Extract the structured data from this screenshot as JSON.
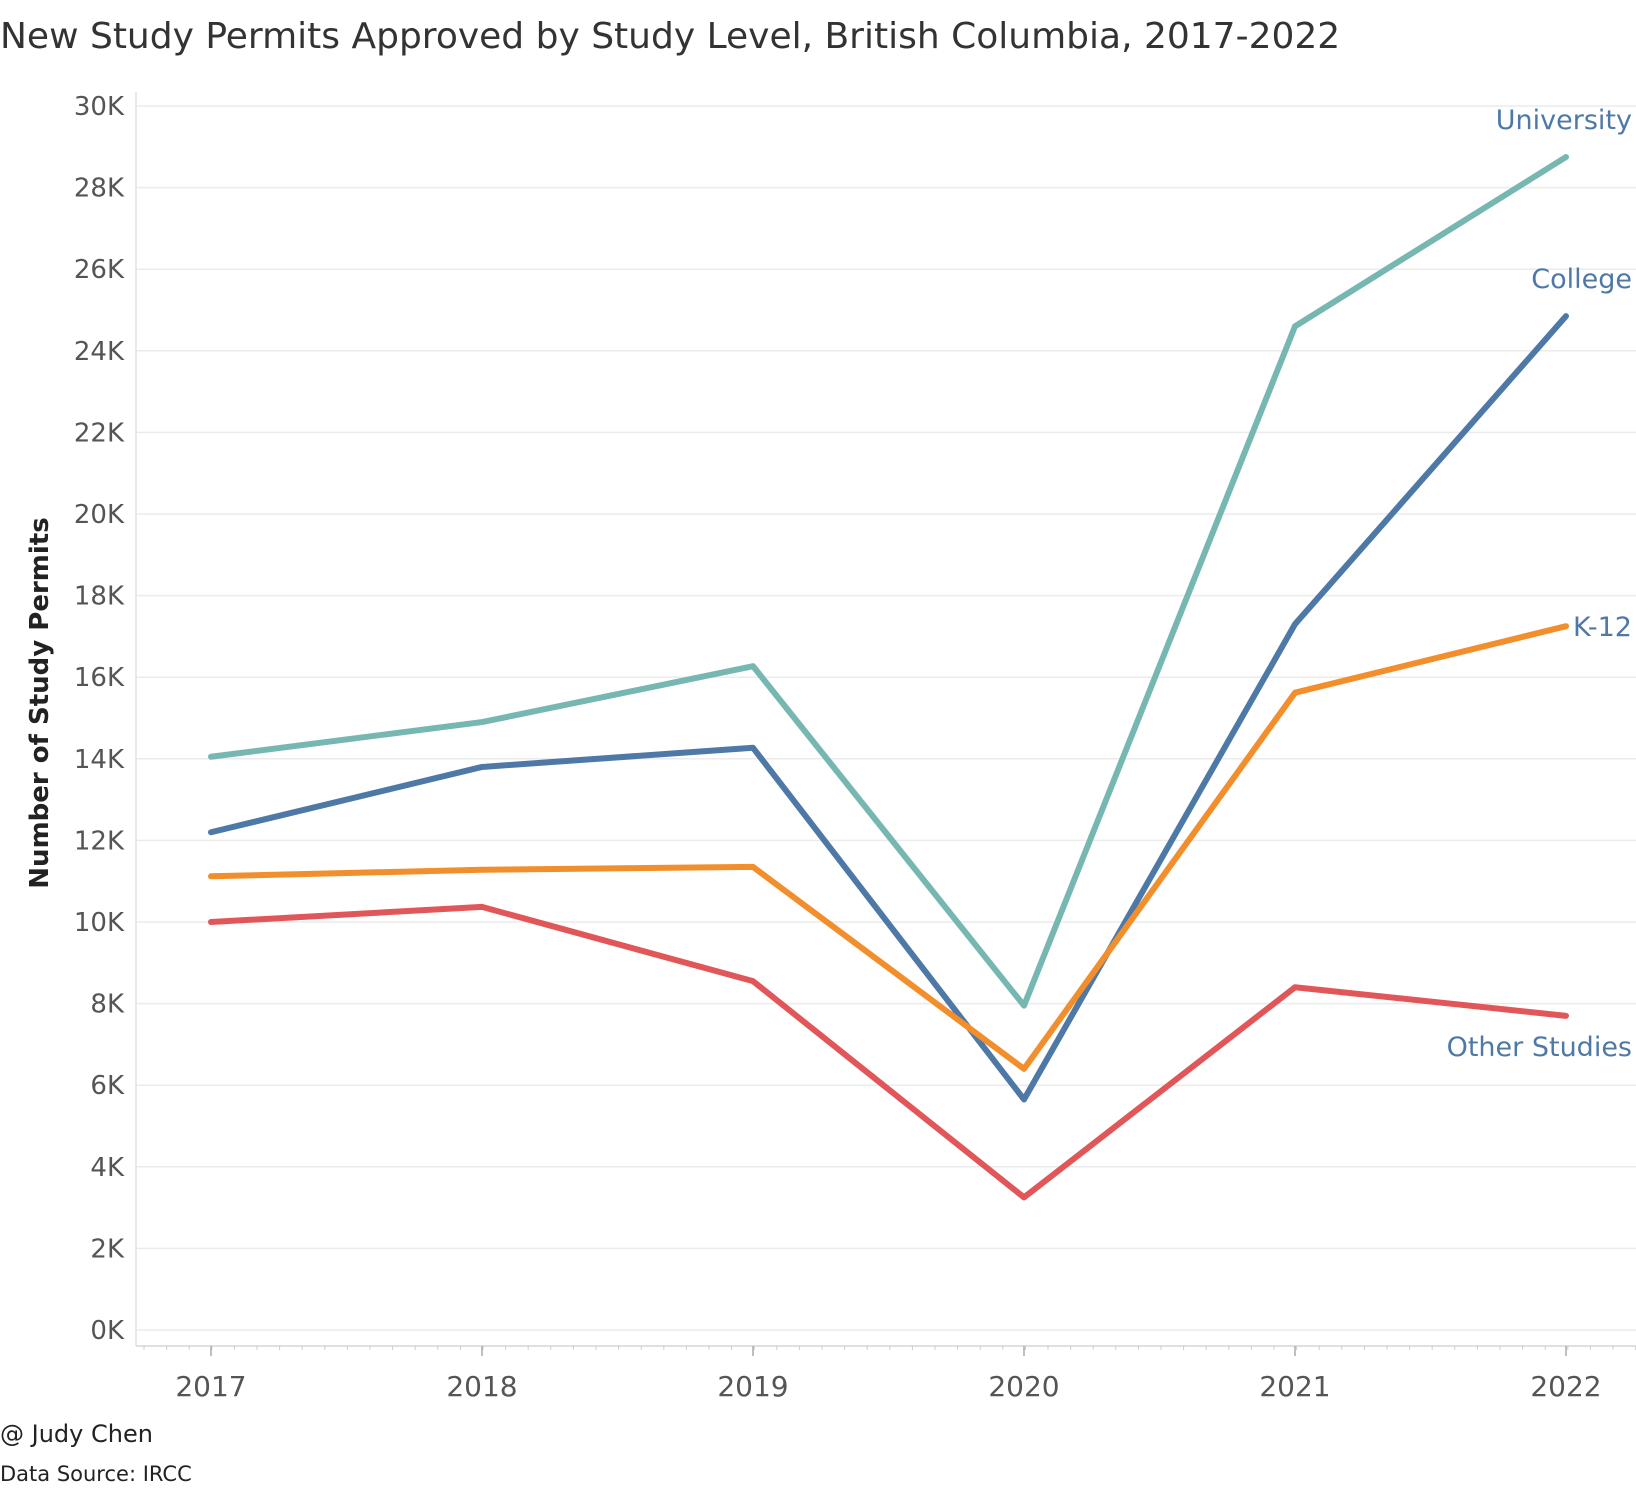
{
  "chart_data": {
    "type": "line",
    "title": "New Study Permits Approved by Study Level, British Columbia, 2017-2022",
    "xlabel": "",
    "ylabel": "Number of Study Permits",
    "x": [
      "2017",
      "2018",
      "2019",
      "2020",
      "2021",
      "2022"
    ],
    "y_ticks": [
      "0K",
      "2K",
      "4K",
      "6K",
      "8K",
      "10K",
      "12K",
      "14K",
      "16K",
      "18K",
      "20K",
      "22K",
      "24K",
      "26K",
      "28K",
      "30K"
    ],
    "ylim": [
      0,
      30000
    ],
    "grid": true,
    "legend": "direct labels at line ends",
    "series": [
      {
        "name": "University",
        "color": "#76b7b2",
        "values": [
          14050,
          14900,
          16270,
          7950,
          24600,
          28750
        ]
      },
      {
        "name": "College",
        "color": "#4e79a7",
        "values": [
          12200,
          13800,
          14270,
          5650,
          17300,
          24850
        ]
      },
      {
        "name": "K-12",
        "color": "#f28e2b",
        "values": [
          11120,
          11280,
          11350,
          6400,
          15620,
          17250
        ]
      },
      {
        "name": "Other Studies",
        "color": "#e15759",
        "values": [
          10000,
          10370,
          8550,
          3250,
          8400,
          7700
        ]
      }
    ],
    "label_color": "#4e79a7"
  },
  "credits": {
    "author": "@ Judy Chen",
    "source": "Data Source: IRCC"
  }
}
